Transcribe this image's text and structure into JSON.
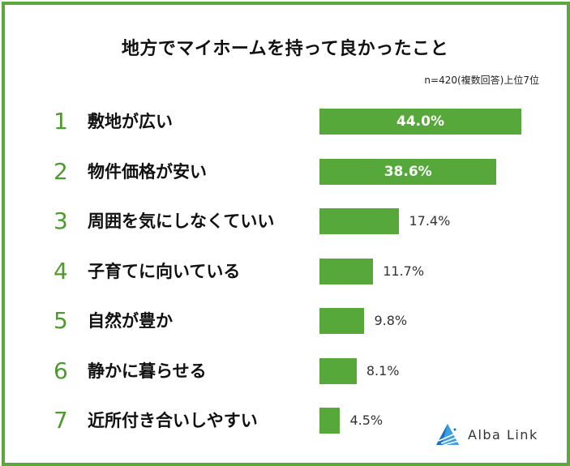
{
  "chart_data": {
    "type": "bar",
    "orientation": "horizontal",
    "title": "地方でマイホームを持って良かったこと",
    "subtitle": "n=420(複数回答)上位7位",
    "ranks": [
      "1",
      "2",
      "3",
      "4",
      "5",
      "6",
      "7"
    ],
    "categories": [
      "敷地が広い",
      "物件価格が安い",
      "周囲を気にしなくていい",
      "子育てに向いている",
      "自然が豊か",
      "静かに暮らせる",
      "近所付き合いしやすい"
    ],
    "values": [
      44.0,
      38.6,
      17.4,
      11.7,
      9.8,
      8.1,
      4.5
    ],
    "value_labels": [
      "44.0%",
      "38.6%",
      "17.4%",
      "11.7%",
      "9.8%",
      "8.1%",
      "4.5%"
    ],
    "unit": "%",
    "xlim": [
      0,
      50
    ],
    "grid": false,
    "colors": {
      "bar": "#56a83a",
      "rank": "#4e9a2f",
      "border": "#5aa93c"
    }
  },
  "logo": {
    "text": "Alba Link"
  }
}
